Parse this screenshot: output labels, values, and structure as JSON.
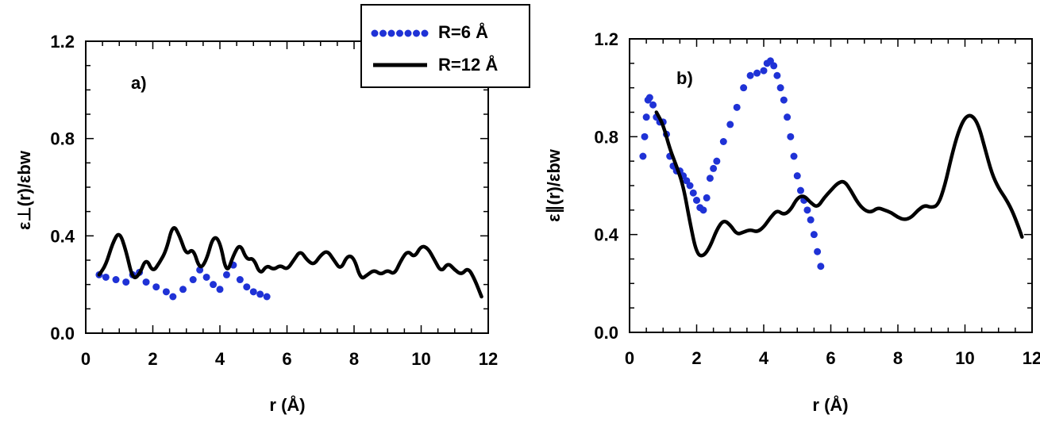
{
  "legend": {
    "entries": [
      {
        "label": "R=6 Å",
        "style": "dotted",
        "color": "#1f32d6"
      },
      {
        "label": "R=12 Å",
        "style": "solid",
        "color": "#000000"
      }
    ]
  },
  "chart_data": [
    {
      "type": "line",
      "panel_label": "a)",
      "xlabel": "r (Å)",
      "ylabel": "ε⊥(r)/εbw",
      "xlim": [
        0,
        12
      ],
      "ylim": [
        0,
        1.2
      ],
      "xticks": [
        "0",
        "2",
        "4",
        "6",
        "8",
        "10",
        "12"
      ],
      "yticks": [
        "0.0",
        "0.4",
        "0.8",
        "1.2"
      ],
      "series": [
        {
          "name": "R=6 Å",
          "style": "dotted",
          "x": [
            0.4,
            0.6,
            0.9,
            1.2,
            1.4,
            1.6,
            1.8,
            2.1,
            2.4,
            2.6,
            2.9,
            3.2,
            3.4,
            3.6,
            3.8,
            4.0,
            4.2,
            4.4,
            4.6,
            4.8,
            5.0,
            5.2,
            5.4
          ],
          "y": [
            0.24,
            0.23,
            0.22,
            0.21,
            0.24,
            0.25,
            0.21,
            0.19,
            0.17,
            0.15,
            0.18,
            0.22,
            0.26,
            0.23,
            0.2,
            0.18,
            0.24,
            0.28,
            0.22,
            0.19,
            0.17,
            0.16,
            0.15
          ]
        },
        {
          "name": "R=12 Å",
          "style": "solid",
          "x": [
            0.4,
            0.6,
            0.8,
            1.0,
            1.2,
            1.4,
            1.6,
            1.8,
            2.0,
            2.2,
            2.4,
            2.6,
            2.8,
            3.0,
            3.2,
            3.4,
            3.6,
            3.8,
            4.0,
            4.2,
            4.4,
            4.6,
            4.8,
            5.0,
            5.2,
            5.4,
            5.6,
            5.8,
            6.0,
            6.2,
            6.4,
            6.6,
            6.8,
            7.0,
            7.2,
            7.4,
            7.6,
            7.8,
            8.0,
            8.2,
            8.4,
            8.6,
            8.8,
            9.0,
            9.2,
            9.4,
            9.6,
            9.8,
            10.0,
            10.2,
            10.4,
            10.6,
            10.8,
            11.0,
            11.2,
            11.4,
            11.6,
            11.8
          ],
          "y": [
            0.24,
            0.28,
            0.37,
            0.42,
            0.34,
            0.22,
            0.24,
            0.31,
            0.25,
            0.29,
            0.34,
            0.45,
            0.4,
            0.32,
            0.35,
            0.26,
            0.3,
            0.4,
            0.38,
            0.24,
            0.32,
            0.37,
            0.3,
            0.31,
            0.24,
            0.28,
            0.26,
            0.28,
            0.26,
            0.3,
            0.34,
            0.3,
            0.28,
            0.32,
            0.34,
            0.3,
            0.26,
            0.32,
            0.31,
            0.22,
            0.24,
            0.26,
            0.24,
            0.26,
            0.24,
            0.3,
            0.34,
            0.31,
            0.36,
            0.35,
            0.3,
            0.25,
            0.29,
            0.26,
            0.24,
            0.27,
            0.22,
            0.15
          ]
        }
      ]
    },
    {
      "type": "line",
      "panel_label": "b)",
      "xlabel": "r (Å)",
      "ylabel": "ε∥(r)/εbw",
      "xlim": [
        0,
        12
      ],
      "ylim": [
        0,
        1.2
      ],
      "xticks": [
        "0",
        "2",
        "4",
        "6",
        "8",
        "10",
        "12"
      ],
      "yticks": [
        "0.0",
        "0.4",
        "0.8",
        "1.2"
      ],
      "series": [
        {
          "name": "R=6 Å",
          "style": "dotted",
          "x": [
            0.4,
            0.45,
            0.5,
            0.55,
            0.6,
            0.7,
            0.8,
            0.9,
            1.0,
            1.1,
            1.2,
            1.3,
            1.4,
            1.5,
            1.6,
            1.7,
            1.8,
            1.9,
            2.0,
            2.1,
            2.2,
            2.3,
            2.4,
            2.5,
            2.6,
            2.8,
            3.0,
            3.2,
            3.4,
            3.6,
            3.8,
            4.0,
            4.1,
            4.2,
            4.3,
            4.4,
            4.5,
            4.6,
            4.7,
            4.8,
            4.9,
            5.0,
            5.1,
            5.2,
            5.3,
            5.4,
            5.5,
            5.6,
            5.7
          ],
          "y": [
            0.72,
            0.8,
            0.88,
            0.95,
            0.96,
            0.93,
            0.88,
            0.86,
            0.86,
            0.81,
            0.72,
            0.68,
            0.66,
            0.66,
            0.64,
            0.62,
            0.6,
            0.57,
            0.54,
            0.51,
            0.5,
            0.55,
            0.63,
            0.67,
            0.7,
            0.78,
            0.85,
            0.92,
            1.0,
            1.05,
            1.06,
            1.07,
            1.1,
            1.11,
            1.09,
            1.05,
            1.0,
            0.95,
            0.88,
            0.8,
            0.72,
            0.64,
            0.58,
            0.54,
            0.5,
            0.46,
            0.4,
            0.33,
            0.27
          ]
        },
        {
          "name": "R=12 Å",
          "style": "solid",
          "x": [
            0.8,
            1.0,
            1.2,
            1.4,
            1.6,
            1.8,
            2.0,
            2.2,
            2.4,
            2.6,
            2.8,
            3.0,
            3.2,
            3.4,
            3.6,
            3.8,
            4.0,
            4.2,
            4.4,
            4.6,
            4.8,
            5.0,
            5.2,
            5.4,
            5.6,
            5.8,
            6.0,
            6.2,
            6.4,
            6.6,
            6.8,
            7.0,
            7.2,
            7.4,
            7.6,
            7.8,
            8.0,
            8.2,
            8.4,
            8.6,
            8.8,
            9.0,
            9.2,
            9.4,
            9.6,
            9.8,
            10.0,
            10.2,
            10.4,
            10.6,
            10.8,
            11.0,
            11.2,
            11.4,
            11.6,
            11.7
          ],
          "y": [
            0.9,
            0.85,
            0.75,
            0.68,
            0.6,
            0.45,
            0.32,
            0.31,
            0.35,
            0.42,
            0.46,
            0.44,
            0.4,
            0.41,
            0.42,
            0.41,
            0.43,
            0.47,
            0.5,
            0.48,
            0.5,
            0.55,
            0.56,
            0.53,
            0.51,
            0.55,
            0.58,
            0.61,
            0.62,
            0.58,
            0.53,
            0.5,
            0.49,
            0.51,
            0.5,
            0.49,
            0.47,
            0.46,
            0.47,
            0.5,
            0.52,
            0.51,
            0.52,
            0.6,
            0.72,
            0.82,
            0.88,
            0.89,
            0.85,
            0.75,
            0.65,
            0.59,
            0.55,
            0.5,
            0.43,
            0.39
          ]
        }
      ]
    }
  ]
}
